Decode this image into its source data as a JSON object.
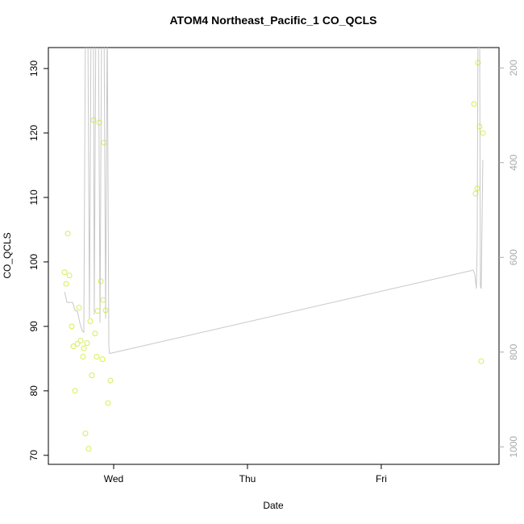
{
  "chart_data": {
    "type": "scatter",
    "title": "ATOM4 Northeast_Pacific_1 CO_QCLS",
    "x_label": "Date",
    "y_label": "CO_QCLS",
    "xlim": [
      -0.488,
      2.88
    ],
    "xticks": [
      {
        "value": 0,
        "label": "Wed"
      },
      {
        "value": 1,
        "label": "Thu"
      },
      {
        "value": 2,
        "label": "Fri"
      }
    ],
    "ylim": [
      68.6,
      133.25
    ],
    "yticks": [
      70,
      80,
      90,
      100,
      110,
      120,
      130
    ],
    "y2lim": [
      1037,
      157
    ],
    "y2ticks": [
      200,
      400,
      600,
      800,
      1000
    ],
    "series": [
      {
        "color": "#d4f050",
        "x": [
          -0.367,
          -0.355,
          -0.343,
          -0.331,
          -0.313,
          -0.301,
          -0.289,
          -0.271,
          -0.259,
          -0.247,
          -0.229,
          -0.223,
          -0.211,
          -0.199,
          -0.187,
          -0.175,
          -0.163,
          -0.151,
          -0.139,
          -0.127,
          -0.12,
          -0.108,
          -0.096,
          -0.084,
          -0.078,
          -0.072,
          -0.06,
          -0.042,
          -0.024,
          2.693,
          2.705,
          2.717,
          2.723,
          2.735,
          2.747,
          2.759
        ],
        "values": [
          98.4,
          96.6,
          104.4,
          97.9,
          90.0,
          86.9,
          80.0,
          87.3,
          92.9,
          87.8,
          85.3,
          86.6,
          73.4,
          87.4,
          71.0,
          90.8,
          82.4,
          122.0,
          88.9,
          85.3,
          92.4,
          121.6,
          97.0,
          84.9,
          94.1,
          118.5,
          92.5,
          78.1,
          81.6,
          124.5,
          110.6,
          111.4,
          130.9,
          121.0,
          84.6,
          120.0
        ]
      },
      {
        "type": "line",
        "axis": "y2",
        "color": "#c8c8c8",
        "x": [
          -0.367,
          -0.349,
          -0.307,
          -0.289,
          -0.271,
          -0.253,
          -0.235,
          -0.223,
          -0.211,
          -0.193,
          -0.181,
          -0.169,
          -0.151,
          -0.145,
          -0.133,
          -0.114,
          -0.102,
          -0.09,
          -0.072,
          -0.06,
          -0.048,
          -0.036,
          -0.03,
          2.687,
          2.699,
          2.711,
          2.717,
          2.723,
          2.735,
          2.741,
          2.747,
          2.759
        ],
        "values": [
          673,
          695,
          695,
          712,
          714,
          738,
          755,
          758,
          100,
          100,
          729,
          100,
          100,
          721,
          100,
          100,
          738,
          100,
          100,
          729,
          100,
          789,
          803,
          627,
          636,
          666,
          568,
          100,
          100,
          661,
          666,
          394
        ]
      }
    ]
  }
}
